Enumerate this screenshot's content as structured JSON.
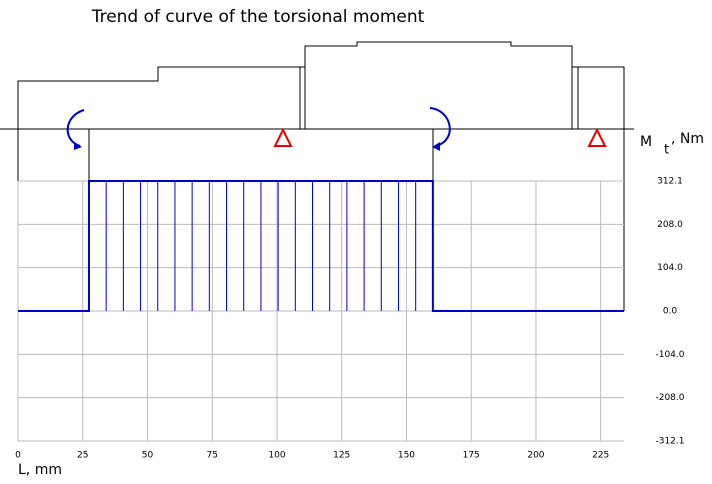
{
  "chart_data": {
    "type": "line",
    "title": "Trend of curve of the torsional moment",
    "xlabel": "L, mm",
    "ylabel_symbol": "M",
    "ylabel_subscript": "t",
    "ylabel_unit": ", Nm",
    "x": [
      0,
      27.4,
      27.4,
      160.2,
      160.2,
      234
    ],
    "series": [
      {
        "color": "#0000cc",
        "values": [
          0,
          0,
          312.1,
          312.1,
          0,
          0
        ]
      }
    ],
    "xlim": [
      0,
      234
    ],
    "xticks": [
      0,
      25,
      50,
      75,
      100,
      125,
      150,
      175,
      200,
      225
    ],
    "ylim": [
      -312.1,
      312.1
    ],
    "yticks": [
      312.1,
      {
        "value": 208,
        "label": "208.0"
      },
      {
        "value": 104,
        "label": "104.0"
      },
      {
        "value": 0,
        "label": "0.0"
      },
      {
        "value": -104,
        "label": "-104.0"
      },
      {
        "value": -208,
        "label": "-208.0"
      },
      -312.1
    ],
    "grid": true
  }
}
